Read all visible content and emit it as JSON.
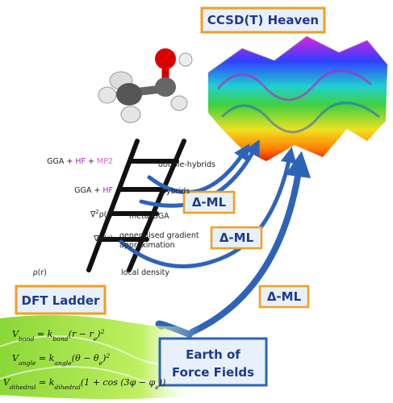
{
  "heaven": "CCSD(T) Heaven",
  "ladder": {
    "title": "DFT Ladder",
    "left_labels": [
      [
        {
          "t": "GGA + "
        },
        {
          "t": "HF",
          "c": "#9b2fae"
        },
        {
          "t": " + "
        },
        {
          "t": "MP2",
          "c": "#d06ad0"
        }
      ],
      [
        {
          "t": "GGA + "
        },
        {
          "t": "HF",
          "c": "#9b2fae"
        }
      ],
      [
        {
          "t": "∇"
        },
        {
          "t": "2",
          "s": "sup"
        },
        {
          "t": "ρ(r)"
        }
      ],
      [
        {
          "t": "∇ρ(r)"
        }
      ],
      [
        {
          "t": "ρ(r)"
        }
      ]
    ],
    "right_labels": [
      [
        "double-hybrids"
      ],
      [
        "hybrids"
      ],
      [
        "meta-GGA"
      ],
      [
        "generalised gradient",
        "approximation"
      ],
      [
        "local density"
      ]
    ]
  },
  "delta_ml": [
    "Δ-ML",
    "Δ-ML",
    "Δ-ML"
  ],
  "earth": [
    "Earth of",
    "Force Fields"
  ],
  "equations": [
    [
      {
        "t": "V"
      },
      {
        "t": "bond",
        "s": "sub"
      },
      {
        "t": " = k"
      },
      {
        "t": "bond",
        "s": "sub"
      },
      {
        "t": "(r − r"
      },
      {
        "t": "e",
        "s": "sub"
      },
      {
        "t": ")"
      },
      {
        "t": "2",
        "s": "sup"
      }
    ],
    [
      {
        "t": "V"
      },
      {
        "t": "angle",
        "s": "sub"
      },
      {
        "t": " = k"
      },
      {
        "t": "angle",
        "s": "sub"
      },
      {
        "t": "(θ − θ"
      },
      {
        "t": "e",
        "s": "sub"
      },
      {
        "t": ")"
      },
      {
        "t": "2",
        "s": "sup"
      }
    ],
    [
      {
        "t": "V"
      },
      {
        "t": "dihedral",
        "s": "sub"
      },
      {
        "t": " = k"
      },
      {
        "t": "dihedral",
        "s": "sub"
      },
      {
        "t": "(1 + cos (3φ − φ"
      },
      {
        "t": "e",
        "s": "sub"
      },
      {
        "t": "))"
      }
    ]
  ]
}
